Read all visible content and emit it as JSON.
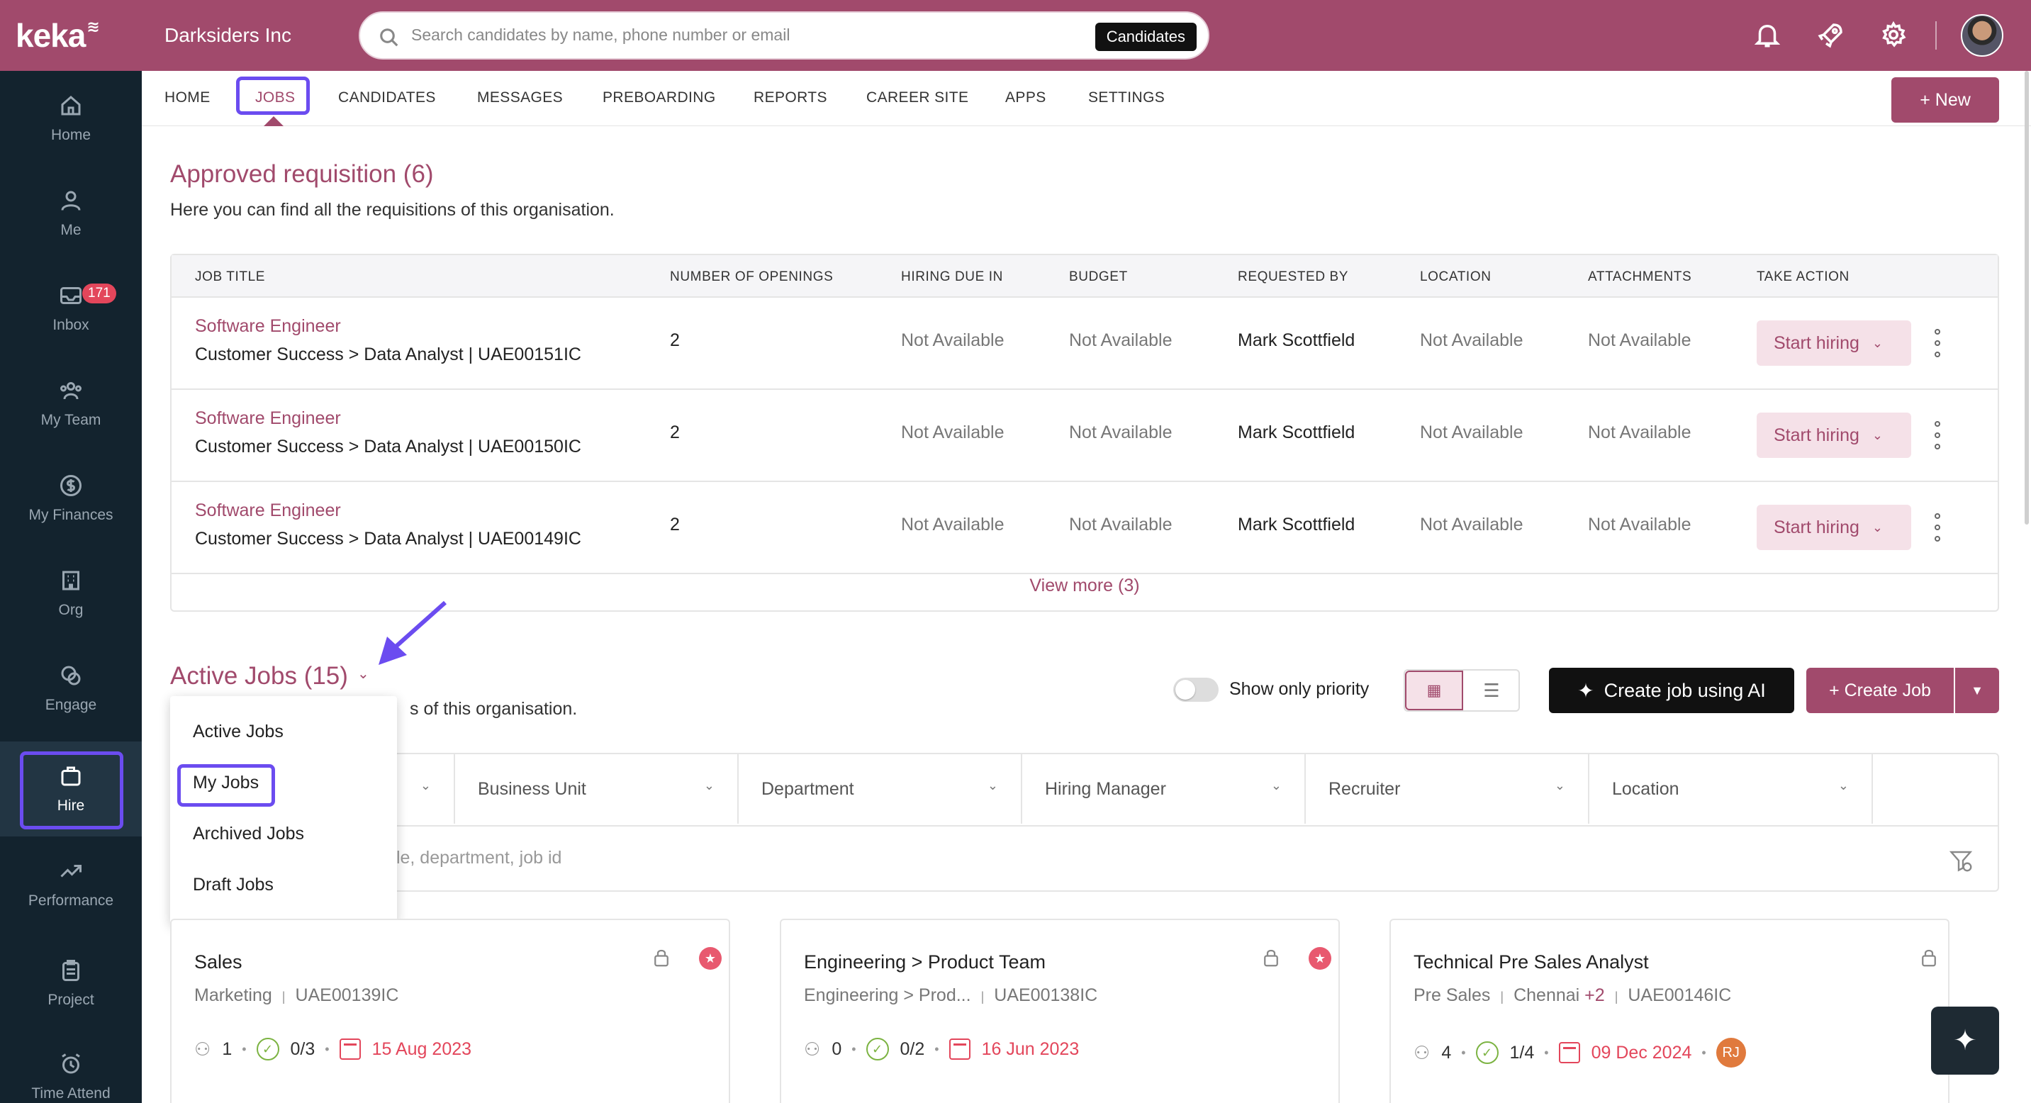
{
  "brand": {
    "logo_text": "keka",
    "accent": "#a14a6c",
    "sidebar_bg": "#13232e",
    "highlight": "#6b4cf0"
  },
  "header": {
    "company": "Darksiders Inc",
    "search_placeholder": "Search candidates by name, phone number or email",
    "search_scope": "Candidates",
    "icons": [
      "bell-icon",
      "rocket-icon",
      "gear-icon",
      "avatar"
    ]
  },
  "sidebar": {
    "items": [
      {
        "label": "Home",
        "icon": "home-icon"
      },
      {
        "label": "Me",
        "icon": "person-icon"
      },
      {
        "label": "Inbox",
        "icon": "inbox-icon",
        "badge": "171"
      },
      {
        "label": "My Team",
        "icon": "team-icon"
      },
      {
        "label": "My Finances",
        "icon": "dollar-icon"
      },
      {
        "label": "Org",
        "icon": "org-icon"
      },
      {
        "label": "Engage",
        "icon": "engage-icon"
      },
      {
        "label": "Hire",
        "icon": "briefcase-icon",
        "active": true
      },
      {
        "label": "Performance",
        "icon": "trend-icon"
      },
      {
        "label": "Project",
        "icon": "clipboard-icon"
      },
      {
        "label": "Time Attend",
        "icon": "alarm-icon"
      }
    ]
  },
  "nav": {
    "tabs": [
      "HOME",
      "JOBS",
      "CANDIDATES",
      "MESSAGES",
      "PREBOARDING",
      "REPORTS",
      "CAREER SITE",
      "APPS",
      "SETTINGS"
    ],
    "active": "JOBS",
    "new_button": "+ New"
  },
  "requisitions": {
    "title": "Approved requisition (6)",
    "subtitle": "Here you can find all the requisitions of this organisation.",
    "columns": [
      "JOB TITLE",
      "NUMBER OF OPENINGS",
      "HIRING DUE IN",
      "BUDGET",
      "REQUESTED BY",
      "LOCATION",
      "ATTACHMENTS",
      "TAKE ACTION"
    ],
    "rows": [
      {
        "title": "Software Engineer",
        "path": "Customer Success > Data Analyst | UAE00151IC",
        "openings": "2",
        "due": "Not Available",
        "budget": "Not Available",
        "requested_by": "Mark Scottfield",
        "location": "Not Available",
        "attachments": "Not Available",
        "action": "Start hiring"
      },
      {
        "title": "Software Engineer",
        "path": "Customer Success > Data Analyst | UAE00150IC",
        "openings": "2",
        "due": "Not Available",
        "budget": "Not Available",
        "requested_by": "Mark Scottfield",
        "location": "Not Available",
        "attachments": "Not Available",
        "action": "Start hiring"
      },
      {
        "title": "Software Engineer",
        "path": "Customer Success > Data Analyst | UAE00149IC",
        "openings": "2",
        "due": "Not Available",
        "budget": "Not Available",
        "requested_by": "Mark Scottfield",
        "location": "Not Available",
        "attachments": "Not Available",
        "action": "Start hiring"
      }
    ],
    "view_more": "View more (3)"
  },
  "active_jobs": {
    "title": "Active Jobs (15)",
    "subtitle_visible": "s of this organisation.",
    "priority_toggle": "Show only priority",
    "ai_button": "Create job using AI",
    "create_button": "+ Create Job",
    "filters": [
      "Business Unit",
      "Department",
      "Hiring Manager",
      "Recruiter",
      "Location"
    ],
    "search_placeholder_visible": "tle, department, job id",
    "dropdown": [
      "Active Jobs",
      "My Jobs",
      "Archived Jobs",
      "Draft Jobs"
    ],
    "dropdown_selected": "My Jobs"
  },
  "cards": [
    {
      "title": "Sales",
      "meta_a": "Marketing",
      "meta_b": "UAE00139IC",
      "people": "1",
      "progress": "0/3",
      "date": "15 Aug 2023",
      "starred": true
    },
    {
      "title": "Engineering > Product Team",
      "meta_a": "Engineering > Prod...",
      "meta_b": "UAE00138IC",
      "people": "0",
      "progress": "0/2",
      "date": "16 Jun 2023",
      "starred": true
    },
    {
      "title": "Technical Pre Sales Analyst",
      "meta_a": "Pre Sales",
      "meta_c": "Chennai",
      "meta_extra": "+2",
      "meta_b": "UAE00146IC",
      "people": "4",
      "progress": "1/4",
      "date": "09 Dec 2024",
      "starred": false,
      "assignee": "RJ"
    }
  ]
}
